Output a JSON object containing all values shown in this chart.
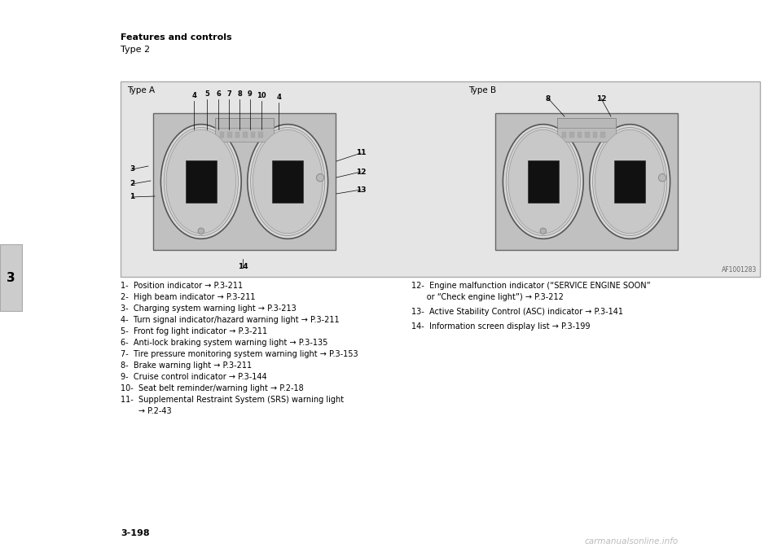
{
  "page_bg": "#ffffff",
  "header_text": "Features and controls",
  "subheader_text": "Type 2",
  "diagram_label_left": "Type A",
  "diagram_label_right": "Type B",
  "image_code": "AF1001283",
  "left_items": [
    "1-  Position indicator → P.3-211",
    "2-  High beam indicator → P.3-211",
    "3-  Charging system warning light → P.3-213",
    "4-  Turn signal indicator/hazard warning light → P.3-211",
    "5-  Front fog light indicator → P.3-211",
    "6-  Anti-lock braking system warning light → P.3-135",
    "7-  Tire pressure monitoring system warning light → P.3-153",
    "8-  Brake warning light → P.3-211",
    "9-  Cruise control indicator → P.3-144",
    "10-  Seat belt reminder/warning light → P.2-18",
    "11-  Supplemental Restraint System (SRS) warning light\n       → P.2-43"
  ],
  "right_items": [
    "12-  Engine malfunction indicator (“SERVICE ENGINE SOON”\n       or “Check engine light”) → P.3-212",
    "13-  Active Stability Control (ASC) indicator → P.3-141",
    "14-  Information screen display list → P.3-199"
  ],
  "page_number": "3-198",
  "tab_number": "3"
}
